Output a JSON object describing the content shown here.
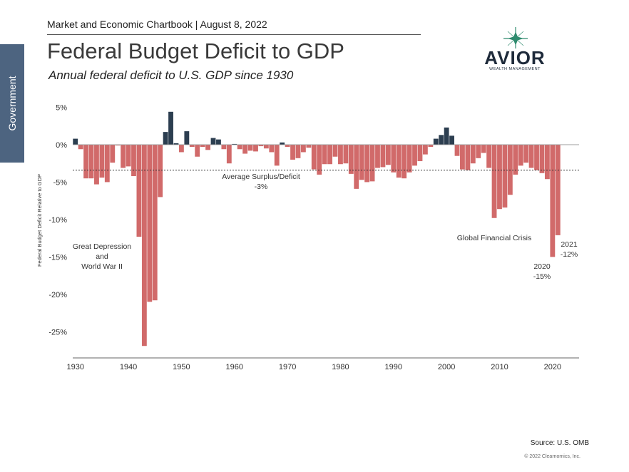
{
  "header": {
    "line": "Market and Economic Chartbook | August 8, 2022"
  },
  "title": "Federal Budget Deficit to GDP",
  "subtitle": "Annual federal deficit to U.S. GDP since 1930",
  "side_tab": {
    "label": "Government",
    "color": "#4d6480"
  },
  "logo": {
    "name": "AVIOR",
    "tagline": "WEALTH MANAGEMENT",
    "icon": "star-burst-icon",
    "star_color": "#2e8b6e"
  },
  "source": "Source: U.S. OMB",
  "copyright": "© 2022 Clearnomics, Inc.",
  "colors": {
    "deficit": "#d16a6a",
    "surplus": "#2c3e50",
    "average_line": "#333333"
  },
  "chart_data": {
    "type": "bar",
    "ylabel": "Federal Budget Deficit Relative to GDP",
    "ylim": [
      -28.5,
      6
    ],
    "xlim": [
      1929.5,
      2025
    ],
    "yticks": [
      5,
      0,
      -5,
      -10,
      -15,
      -20,
      -25
    ],
    "ytick_labels": [
      "5%",
      "0%",
      "-5%",
      "-10%",
      "-15%",
      "-20%",
      "-25%"
    ],
    "xticks": [
      1930,
      1940,
      1950,
      1960,
      1970,
      1980,
      1990,
      2000,
      2010,
      2020
    ],
    "average": -3.4,
    "x": [
      1930,
      1931,
      1932,
      1933,
      1934,
      1935,
      1936,
      1937,
      1938,
      1939,
      1940,
      1941,
      1942,
      1943,
      1944,
      1945,
      1946,
      1947,
      1948,
      1949,
      1950,
      1951,
      1952,
      1953,
      1954,
      1955,
      1956,
      1957,
      1958,
      1959,
      1960,
      1961,
      1962,
      1963,
      1964,
      1965,
      1966,
      1967,
      1968,
      1969,
      1970,
      1971,
      1972,
      1973,
      1974,
      1975,
      1976,
      1977,
      1978,
      1979,
      1980,
      1981,
      1982,
      1983,
      1984,
      1985,
      1986,
      1987,
      1988,
      1989,
      1990,
      1991,
      1992,
      1993,
      1994,
      1995,
      1996,
      1997,
      1998,
      1999,
      2000,
      2001,
      2002,
      2003,
      2004,
      2005,
      2006,
      2007,
      2008,
      2009,
      2010,
      2011,
      2012,
      2013,
      2014,
      2015,
      2016,
      2017,
      2018,
      2019,
      2020,
      2021
    ],
    "values": [
      0.8,
      -0.6,
      -4.5,
      -4.5,
      -5.3,
      -4.4,
      -5.0,
      -2.4,
      -0.1,
      -3.1,
      -2.9,
      -4.2,
      -12.3,
      -26.9,
      -21.0,
      -20.8,
      -7.0,
      1.7,
      4.4,
      0.2,
      -1.0,
      1.8,
      -0.3,
      -1.6,
      -0.3,
      -0.7,
      0.9,
      0.7,
      -0.6,
      -2.5,
      0.1,
      -0.6,
      -1.2,
      -0.8,
      -0.9,
      -0.2,
      -0.5,
      -1.0,
      -2.8,
      0.3,
      -0.3,
      -2.0,
      -1.8,
      -1.0,
      -0.4,
      -3.3,
      -4.0,
      -2.6,
      -2.6,
      -1.6,
      -2.6,
      -2.5,
      -3.9,
      -5.9,
      -4.7,
      -5.0,
      -4.9,
      -3.1,
      -3.0,
      -2.7,
      -3.7,
      -4.4,
      -4.5,
      -3.7,
      -2.8,
      -2.2,
      -1.3,
      -0.3,
      0.8,
      1.3,
      2.3,
      1.2,
      -1.5,
      -3.3,
      -3.4,
      -2.5,
      -1.8,
      -1.1,
      -3.1,
      -9.8,
      -8.6,
      -8.4,
      -6.7,
      -4.0,
      -2.8,
      -2.4,
      -3.1,
      -3.4,
      -3.8,
      -4.6,
      -15.0,
      -12.1
    ],
    "annotations": {
      "depression": [
        "Great Depression",
        "and",
        "World War II"
      ],
      "average": [
        "Average Surplus/Deficit",
        "-3%"
      ],
      "gfc": "Global Financial Crisis",
      "y2020": [
        "2020",
        "-15%"
      ],
      "y2021": [
        "2021",
        "-12%"
      ]
    }
  }
}
